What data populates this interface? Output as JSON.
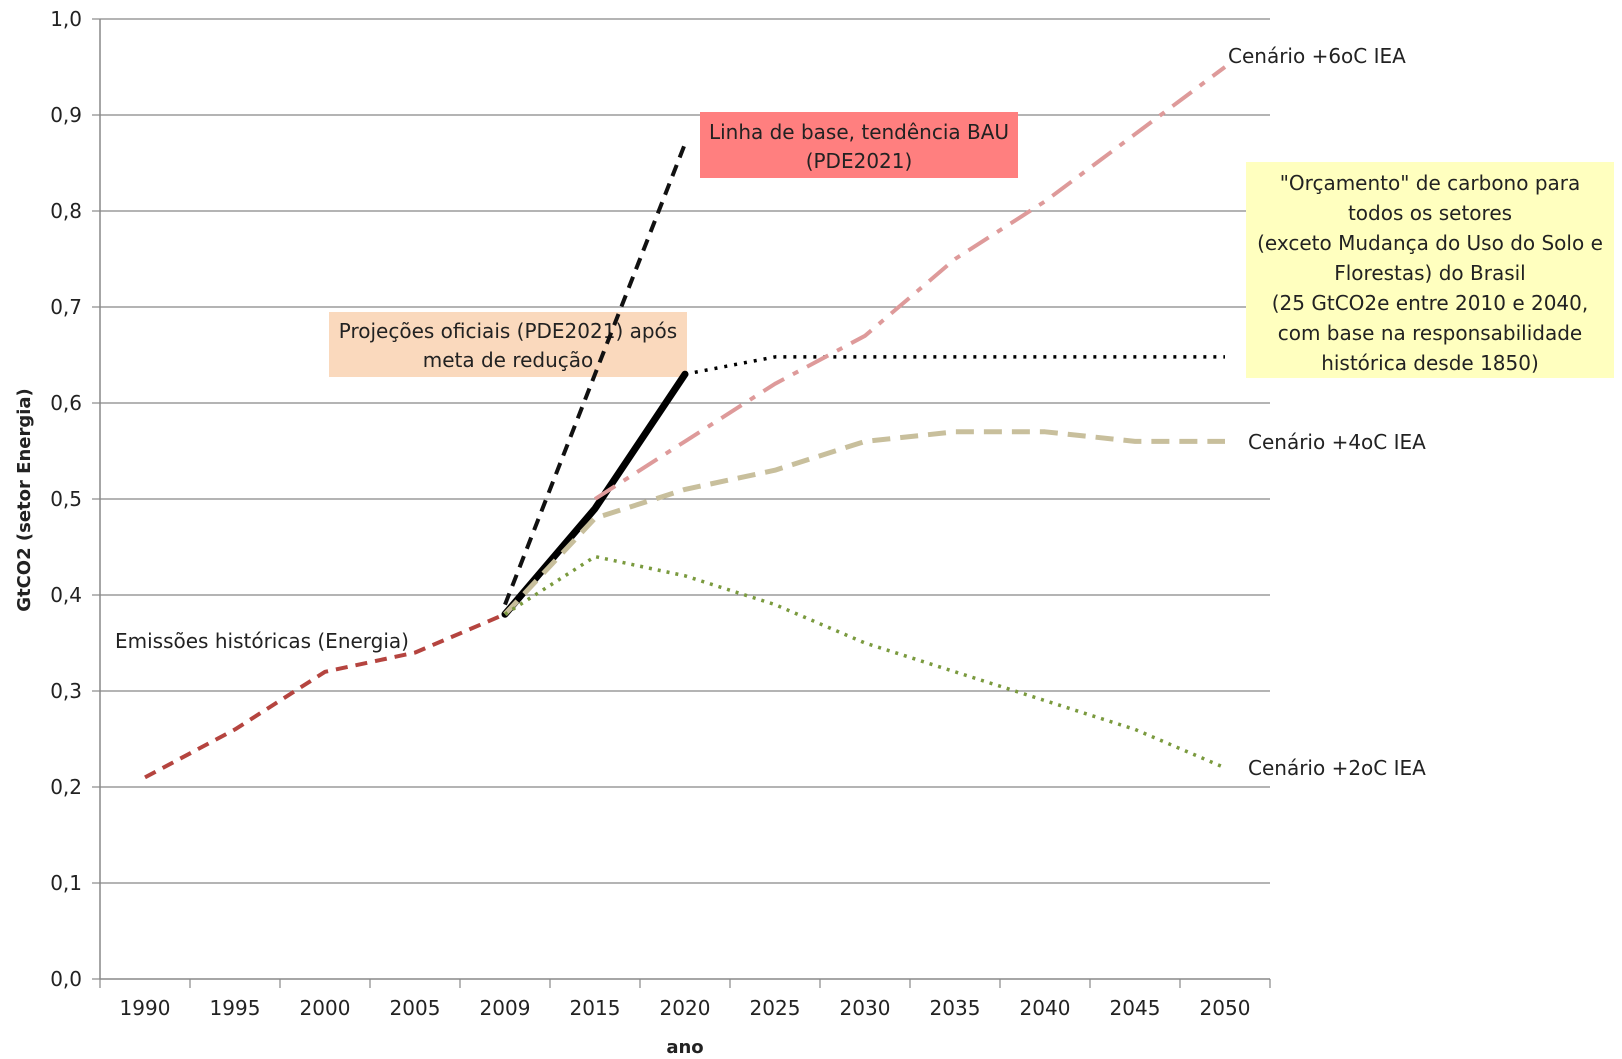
{
  "chart_data": {
    "type": "line",
    "xlabel": "ano",
    "ylabel": "GtCO2 (setor Energia)",
    "categories": [
      "1990",
      "1995",
      "2000",
      "2005",
      "2009",
      "2015",
      "2020",
      "2025",
      "2030",
      "2035",
      "2040",
      "2045",
      "2050"
    ],
    "yticks": [
      "0,0",
      "0,1",
      "0,2",
      "0,3",
      "0,4",
      "0,5",
      "0,6",
      "0,7",
      "0,8",
      "0,9",
      "1,0"
    ],
    "ylim": [
      0,
      1.0
    ],
    "grid": true,
    "legend": "none",
    "series": [
      {
        "key": "historico",
        "color": "#b5443f",
        "style": "dashed",
        "points": [
          [
            "1990",
            0.21
          ],
          [
            "1995",
            0.26
          ],
          [
            "2000",
            0.32
          ],
          [
            "2005",
            0.34
          ],
          [
            "2009",
            0.38
          ]
        ]
      },
      {
        "key": "bau",
        "color": "#111111",
        "style": "dashed",
        "points": [
          [
            "2009",
            0.39
          ],
          [
            "2015",
            0.63
          ],
          [
            "2020",
            0.87
          ]
        ]
      },
      {
        "key": "oficial",
        "color": "#000000",
        "style": "solid",
        "points": [
          [
            "2009",
            0.38
          ],
          [
            "2015",
            0.49
          ],
          [
            "2020",
            0.63
          ]
        ]
      },
      {
        "key": "oficial_ext",
        "color": "#000000",
        "style": "dotted",
        "points": [
          [
            "2020",
            0.63
          ],
          [
            "2025",
            0.648
          ],
          [
            "2030",
            0.648
          ],
          [
            "2035",
            0.648
          ],
          [
            "2040",
            0.648
          ],
          [
            "2045",
            0.648
          ],
          [
            "2050",
            0.648
          ]
        ]
      },
      {
        "key": "iea6",
        "color": "#de9a9a",
        "style": "dashdot",
        "points": [
          [
            "2015",
            0.5
          ],
          [
            "2020",
            0.56
          ],
          [
            "2025",
            0.62
          ],
          [
            "2030",
            0.67
          ],
          [
            "2035",
            0.75
          ],
          [
            "2040",
            0.81
          ],
          [
            "2045",
            0.88
          ],
          [
            "2050",
            0.95
          ]
        ]
      },
      {
        "key": "iea4",
        "color": "#c8bf9c",
        "style": "dashed",
        "points": [
          [
            "2009",
            0.38
          ],
          [
            "2015",
            0.48
          ],
          [
            "2020",
            0.51
          ],
          [
            "2025",
            0.53
          ],
          [
            "2030",
            0.56
          ],
          [
            "2035",
            0.57
          ],
          [
            "2040",
            0.57
          ],
          [
            "2045",
            0.56
          ],
          [
            "2050",
            0.56
          ]
        ]
      },
      {
        "key": "iea2",
        "color": "#7a9a3e",
        "style": "dotted",
        "points": [
          [
            "2009",
            0.38
          ],
          [
            "2015",
            0.44
          ],
          [
            "2020",
            0.42
          ],
          [
            "2025",
            0.39
          ],
          [
            "2030",
            0.35
          ],
          [
            "2035",
            0.32
          ],
          [
            "2040",
            0.29
          ],
          [
            "2045",
            0.26
          ],
          [
            "2050",
            0.22
          ]
        ]
      }
    ],
    "annotations": {
      "bau": {
        "lines": [
          "Linha de base, tendência BAU",
          "(PDE2021)"
        ],
        "bg": "#ff7f7f"
      },
      "oficial": {
        "lines": [
          "Projeções oficiais (PDE2021) após",
          "meta de redução"
        ],
        "bg": "#fad9bd"
      },
      "orcamento": {
        "lines": [
          "\"Orçamento\" de carbono para",
          "todos os setores",
          "(exceto Mudança do Uso do Solo e",
          "Florestas) do Brasil",
          "(25 GtCO2e entre 2010 e 2040,",
          "com base na responsabilidade",
          "histórica desde 1850)"
        ],
        "bg": "#ffffbf"
      },
      "historico": {
        "text": "Emissões históricas (Energia)"
      },
      "iea6": {
        "text": "Cenário +6oC IEA"
      },
      "iea4": {
        "text": "Cenário +4oC IEA"
      },
      "iea2": {
        "text": "Cenário +2oC IEA"
      }
    }
  }
}
